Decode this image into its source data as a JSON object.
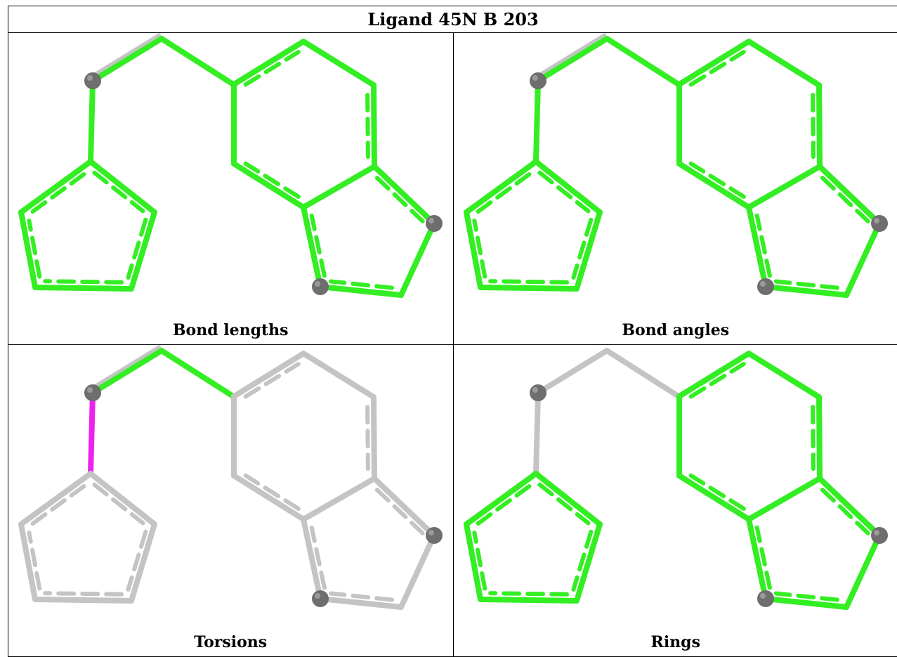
{
  "title": "Ligand 45N B 203",
  "panels": [
    {
      "caption": "Bond lengths",
      "bonds": [
        "green",
        "green",
        "green",
        "green",
        "green",
        "green",
        "green",
        "green",
        "green",
        "green",
        "green",
        "green",
        "green",
        "green",
        "green",
        "green",
        "green",
        "green",
        "green"
      ],
      "grey_ghost": [
        true,
        false,
        false,
        false,
        false,
        false,
        false,
        false,
        false,
        false,
        false,
        false,
        false,
        false,
        false,
        false,
        false,
        false,
        false
      ]
    },
    {
      "caption": "Bond angles",
      "bonds": [
        "green",
        "green",
        "green",
        "green",
        "green",
        "green",
        "green",
        "green",
        "green",
        "green",
        "green",
        "green",
        "green",
        "green",
        "green",
        "green",
        "green",
        "green",
        "green"
      ],
      "grey_ghost": [
        true,
        false,
        false,
        false,
        false,
        false,
        false,
        false,
        false,
        false,
        false,
        false,
        false,
        false,
        false,
        false,
        false,
        false,
        false
      ]
    },
    {
      "caption": "Torsions",
      "bonds": [
        "green",
        "magenta",
        "green",
        "green",
        "grey",
        "grey",
        "grey",
        "grey",
        "grey",
        "grey",
        "grey",
        "grey",
        "grey",
        "grey",
        "grey",
        "grey",
        "grey",
        "grey",
        "grey"
      ],
      "grey_ghost": [
        true,
        false,
        false,
        false,
        false,
        false,
        false,
        false,
        false,
        false,
        false,
        false,
        false,
        false,
        false,
        false,
        false,
        false,
        false
      ]
    },
    {
      "caption": "Rings",
      "bonds": [
        "grey",
        "grey",
        "grey",
        "grey",
        "green",
        "green",
        "green",
        "green",
        "green",
        "green",
        "green",
        "green",
        "green",
        "green",
        "green",
        "green",
        "green",
        "green",
        "green"
      ],
      "grey_ghost": [
        false,
        false,
        false,
        false,
        false,
        false,
        false,
        false,
        false,
        false,
        false,
        false,
        false,
        false,
        false,
        false,
        false,
        false,
        false
      ]
    }
  ],
  "colors": {
    "green": "#33ee22",
    "grey": "#c4c4c4",
    "magenta": "#ee22ee",
    "atom": "#6e6e6e"
  }
}
